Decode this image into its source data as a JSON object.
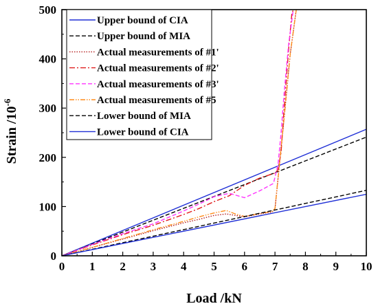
{
  "chart_data": {
    "type": "line",
    "xlabel": "Load /kN",
    "ylabel_main": "Strain /10",
    "ylabel_sup": "-6",
    "xlim": [
      0,
      10
    ],
    "ylim": [
      0,
      500
    ],
    "x_ticks": [
      0,
      1,
      2,
      3,
      4,
      5,
      6,
      7,
      8,
      9,
      10
    ],
    "y_ticks": [
      0,
      100,
      200,
      300,
      400,
      500
    ],
    "x_tick_labels": [
      "0",
      "1",
      "2",
      "3",
      "4",
      "5",
      "6",
      "7",
      "8",
      "9",
      "10"
    ],
    "y_tick_labels": [
      "0",
      "100",
      "200",
      "300",
      "400",
      "500"
    ],
    "grid": false,
    "legend_position": "top-left",
    "series": [
      {
        "name": "Upper bound of CIA",
        "color": "#1f2fd6",
        "dash": "solid",
        "x": [
          0,
          10
        ],
        "y": [
          0,
          257
        ]
      },
      {
        "name": "Upper bound of MIA",
        "color": "#000000",
        "dash": "dashed",
        "x": [
          0,
          10
        ],
        "y": [
          0,
          241
        ]
      },
      {
        "name": "Actual measurements of #1'",
        "color": "#b31b1b",
        "dash": "dotted",
        "x": [
          0,
          1,
          2,
          3,
          4,
          4.5,
          5,
          5.4,
          5.7,
          6,
          6.5,
          6.9,
          7.0,
          7.3,
          7.5,
          7.7
        ],
        "y": [
          0,
          17,
          34,
          51,
          67,
          74,
          82,
          85,
          82,
          79,
          85,
          89,
          95,
          280,
          410,
          500
        ]
      },
      {
        "name": "Actual measurements of #2'",
        "color": "#e01a1a",
        "dash": "dashdot",
        "x": [
          0,
          1,
          2,
          3,
          4,
          4.5,
          5,
          5.5,
          6,
          6.5,
          7.0,
          7.1,
          7.2,
          7.3,
          7.45,
          7.55,
          7.6
        ],
        "y": [
          0,
          22,
          43,
          62,
          84,
          96,
          110,
          122,
          143,
          158,
          168,
          175,
          210,
          300,
          420,
          490,
          500
        ]
      },
      {
        "name": "Actual measurements of #3'",
        "color": "#ff33ff",
        "dash": "dashed",
        "x": [
          0,
          1,
          2,
          3,
          4,
          4.5,
          5,
          5.5,
          6,
          6.5,
          6.95,
          7.1,
          7.2,
          7.3,
          7.45,
          7.6
        ],
        "y": [
          0,
          23,
          45,
          65,
          91,
          105,
          120,
          127,
          118,
          132,
          147,
          185,
          250,
          330,
          430,
          500
        ]
      },
      {
        "name": "Actual measurements of #5",
        "color": "#ff8c1a",
        "dash": "dashdotdot",
        "x": [
          0,
          1,
          2,
          3,
          4,
          4.5,
          5,
          5.4,
          5.7,
          6,
          6.5,
          6.9,
          7.0,
          7.3,
          7.5,
          7.7
        ],
        "y": [
          0,
          17,
          35,
          53,
          70,
          79,
          87,
          92,
          85,
          80,
          86,
          90,
          96,
          280,
          410,
          500
        ]
      },
      {
        "name": "Lower bound of MIA",
        "color": "#000000",
        "dash": "dashed",
        "x": [
          0,
          10
        ],
        "y": [
          0,
          133
        ]
      },
      {
        "name": "Lower bound of CIA",
        "color": "#1f2fd6",
        "dash": "solid",
        "x": [
          0,
          10
        ],
        "y": [
          0,
          125
        ]
      }
    ]
  }
}
